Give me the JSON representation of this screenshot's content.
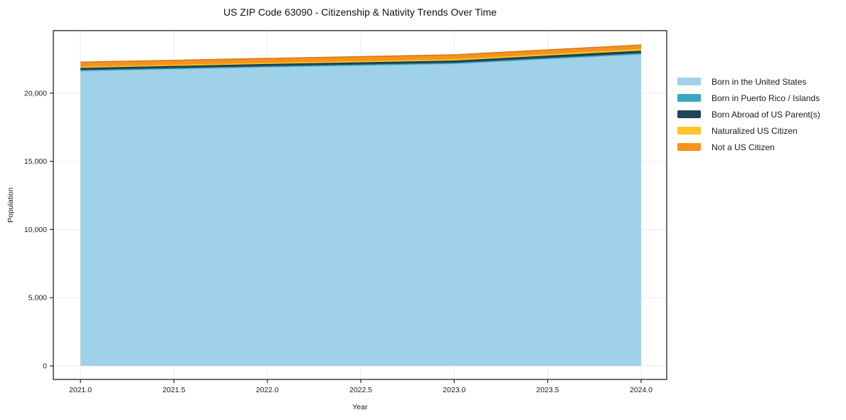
{
  "title": "US ZIP Code 63090 - Citizenship & Nativity Trends Over Time",
  "axes": {
    "x_label": "Year",
    "y_label": "Population"
  },
  "frame_color": "#222222",
  "grid_color": "#ebebeb",
  "tick_label_color": "#1a1a1a",
  "chart_data": {
    "type": "area",
    "stacked": true,
    "title": "US ZIP Code 63090 - Citizenship & Nativity Trends Over Time",
    "xlabel": "Year",
    "ylabel": "Population",
    "x": [
      2021,
      2022,
      2023,
      2024
    ],
    "series": [
      {
        "name": "Born in the United States",
        "color": "#9fd2e8",
        "line_color": "#8cc4de",
        "values": [
          21620,
          21905,
          22150,
          22850
        ]
      },
      {
        "name": "Born in Puerto Rico / Islands",
        "color": "#3aa6c2",
        "line_color": "#2e93ae",
        "values": [
          75,
          70,
          75,
          85
        ]
      },
      {
        "name": "Born Abroad of US Parent(s)",
        "color": "#1f4557",
        "line_color": "#16323f",
        "values": [
          150,
          155,
          160,
          175
        ]
      },
      {
        "name": "Naturalized US Citizen",
        "color": "#fcc32d",
        "line_color": "#e3a81c",
        "values": [
          110,
          115,
          130,
          150
        ]
      },
      {
        "name": "Not a US Citizen",
        "color": "#f5921e",
        "line_color": "#d97b12",
        "values": [
          315,
          295,
          290,
          265
        ]
      }
    ],
    "xlim": [
      2020.855,
      2024.137
    ],
    "ylim": [
      -990,
      24580
    ],
    "x_tick_values": [
      2021,
      2021.5,
      2022,
      2022.5,
      2023,
      2023.5,
      2024
    ],
    "x_tick_labels": [
      "2021.0",
      "2021.5",
      "2022.0",
      "2022.5",
      "2023.0",
      "2023.5",
      "2024.0"
    ],
    "y_tick_values": [
      0,
      5000,
      10000,
      15000,
      20000
    ],
    "y_tick_labels": [
      "0",
      "5,000",
      "10,000",
      "15,000",
      "20,000"
    ],
    "grid": true,
    "legend_position": "right"
  }
}
